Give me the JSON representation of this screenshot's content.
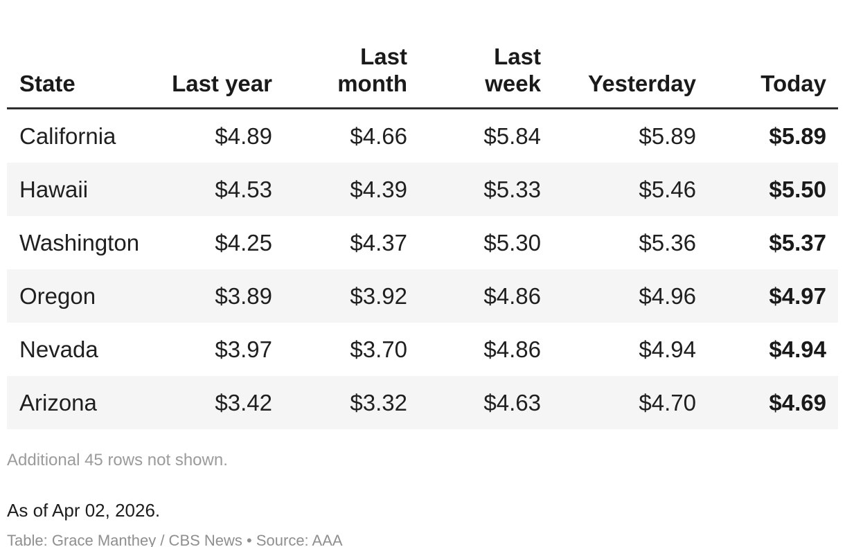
{
  "chart_data": {
    "type": "table",
    "title": "",
    "columns": [
      "State",
      "Last year",
      "Last month",
      "Last week",
      "Yesterday",
      "Today"
    ],
    "rows": [
      [
        "California",
        4.89,
        4.66,
        5.84,
        5.89,
        5.89
      ],
      [
        "Hawaii",
        4.53,
        4.39,
        5.33,
        5.46,
        5.5
      ],
      [
        "Washington",
        4.25,
        4.37,
        5.3,
        5.36,
        5.37
      ],
      [
        "Oregon",
        3.89,
        3.92,
        4.86,
        4.96,
        4.97
      ],
      [
        "Nevada",
        3.97,
        3.7,
        4.86,
        4.94,
        4.94
      ],
      [
        "Arizona",
        3.42,
        3.32,
        4.63,
        4.7,
        4.69
      ]
    ],
    "value_format": "USD per gallon",
    "notes": "Today column emphasized bold; rows striped alternately"
  },
  "table": {
    "columns": [
      {
        "label": "State"
      },
      {
        "label": "Last year"
      },
      {
        "label": "Last month"
      },
      {
        "label": "Last week"
      },
      {
        "label": "Yesterday"
      },
      {
        "label": "Today"
      }
    ],
    "rows": [
      {
        "cells": [
          "California",
          "$4.89",
          "$4.66",
          "$5.84",
          "$5.89",
          "$5.89"
        ]
      },
      {
        "cells": [
          "Hawaii",
          "$4.53",
          "$4.39",
          "$5.33",
          "$5.46",
          "$5.50"
        ]
      },
      {
        "cells": [
          "Washington",
          "$4.25",
          "$4.37",
          "$5.30",
          "$5.36",
          "$5.37"
        ]
      },
      {
        "cells": [
          "Oregon",
          "$3.89",
          "$3.92",
          "$4.86",
          "$4.96",
          "$4.97"
        ]
      },
      {
        "cells": [
          "Nevada",
          "$3.97",
          "$3.70",
          "$4.86",
          "$4.94",
          "$4.94"
        ]
      },
      {
        "cells": [
          "Arizona",
          "$3.42",
          "$3.32",
          "$4.63",
          "$4.70",
          "$4.69"
        ]
      }
    ]
  },
  "footer": {
    "additional_note": "Additional 45 rows not shown.",
    "as_of": "As of Apr 02, 2026.",
    "credit": "Table: Grace Manthey / CBS News • Source: AAA"
  },
  "colors": {
    "header_text": "#1a1a1a",
    "body_text": "#1f1f1f",
    "header_rule": "#2d2d2d",
    "row_stripe": "#f5f5f5",
    "muted_note": "#9b9b9b",
    "credit_text": "#8f8f8f",
    "background": "#ffffff"
  }
}
